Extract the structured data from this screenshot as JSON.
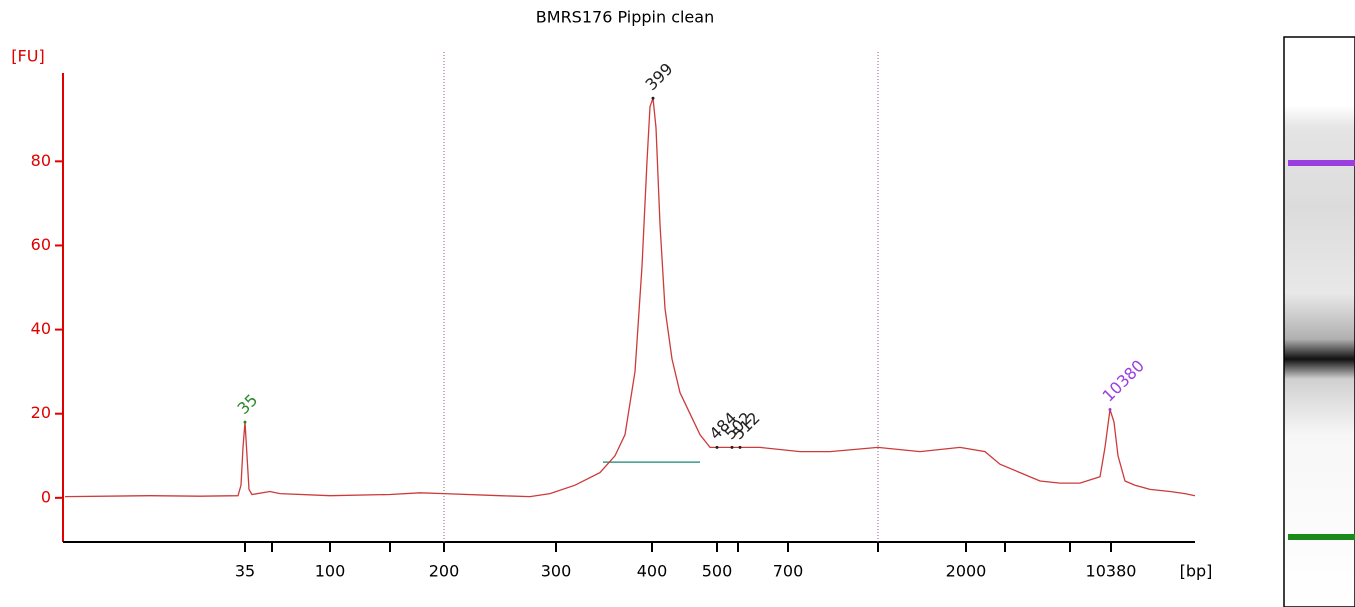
{
  "chart_data": {
    "type": "line",
    "title": "BMRS176 Pippin clean",
    "y_label": "[FU]",
    "x_label": "[bp]",
    "xlim": [
      0,
      113
    ],
    "ylim": [
      -10.5,
      101
    ],
    "yticks": [
      0,
      20,
      40,
      60,
      80
    ],
    "xticks": [
      {
        "value": 18.0,
        "label": "35"
      },
      {
        "value": 26.5,
        "label": "100"
      },
      {
        "value": 37.9,
        "label": "200"
      },
      {
        "value": 49.1,
        "label": "300"
      },
      {
        "value": 58.7,
        "label": "400"
      },
      {
        "value": 65.2,
        "label": "500"
      },
      {
        "value": 72.3,
        "label": "700"
      },
      {
        "value": 90.1,
        "label": "2000"
      },
      {
        "value": 104.6,
        "label": "10380"
      }
    ],
    "xminorticks": [
      20.7,
      32.5,
      67.3,
      81.3,
      94.0,
      100.5
    ],
    "xgrid": [
      37.9,
      81.3
    ],
    "axis_color": "#e00000",
    "series": [
      {
        "color": "#cc3a3a",
        "x": [
          0,
          8.5,
          13.5,
          17.3,
          17.6,
          17.8,
          18.0,
          18.2,
          18.4,
          18.7,
          20.5,
          21.5,
          26.5,
          32.5,
          35.5,
          37.9,
          43.5,
          46.5,
          48.5,
          51,
          53.5,
          55,
          56,
          57,
          57.7,
          58.2,
          58.5,
          58.8,
          59.1,
          59.5,
          60,
          60.7,
          61.5,
          62.5,
          63.5,
          64.5,
          66.5,
          69.5,
          73.5,
          76.5,
          81.3,
          85.5,
          89.5,
          92,
          93.5,
          95.5,
          97.5,
          99.5,
          101.5,
          103.5,
          104,
          104.5,
          104.9,
          105.3,
          106,
          107,
          108.5,
          110.5,
          112,
          113
        ],
        "values": [
          0.3,
          0.5,
          0.4,
          0.5,
          3,
          12,
          18,
          10,
          2,
          0.8,
          1.5,
          1.0,
          0.5,
          0.8,
          1.2,
          1.0,
          0.5,
          0.3,
          1,
          3,
          6,
          10,
          15,
          30,
          55,
          80,
          93,
          95,
          88,
          65,
          45,
          33,
          25,
          20,
          15,
          12,
          12,
          12,
          11,
          11,
          12,
          11,
          12,
          11,
          8,
          6,
          4,
          3.5,
          3.5,
          5,
          12,
          21,
          18,
          10,
          4,
          3,
          2,
          1.5,
          1,
          0.5
        ]
      }
    ],
    "region": {
      "x": [
        53.8,
        63.5
      ],
      "y": 8.5,
      "color": "#3a9a8a"
    },
    "peaks": [
      {
        "label": "35",
        "x": 18.0,
        "y": 18,
        "color": "#2a8a2a"
      },
      {
        "label": "399",
        "x": 58.8,
        "y": 95,
        "color": "#222222"
      },
      {
        "label": "484",
        "x": 65.2,
        "y": 12,
        "color": "#222222"
      },
      {
        "label": "502",
        "x": 66.7,
        "y": 12,
        "color": "#222222"
      },
      {
        "label": "512",
        "x": 67.5,
        "y": 12,
        "color": "#222222"
      },
      {
        "label": "10380",
        "x": 104.5,
        "y": 21,
        "color": "#9b3ee0"
      }
    ]
  }
}
